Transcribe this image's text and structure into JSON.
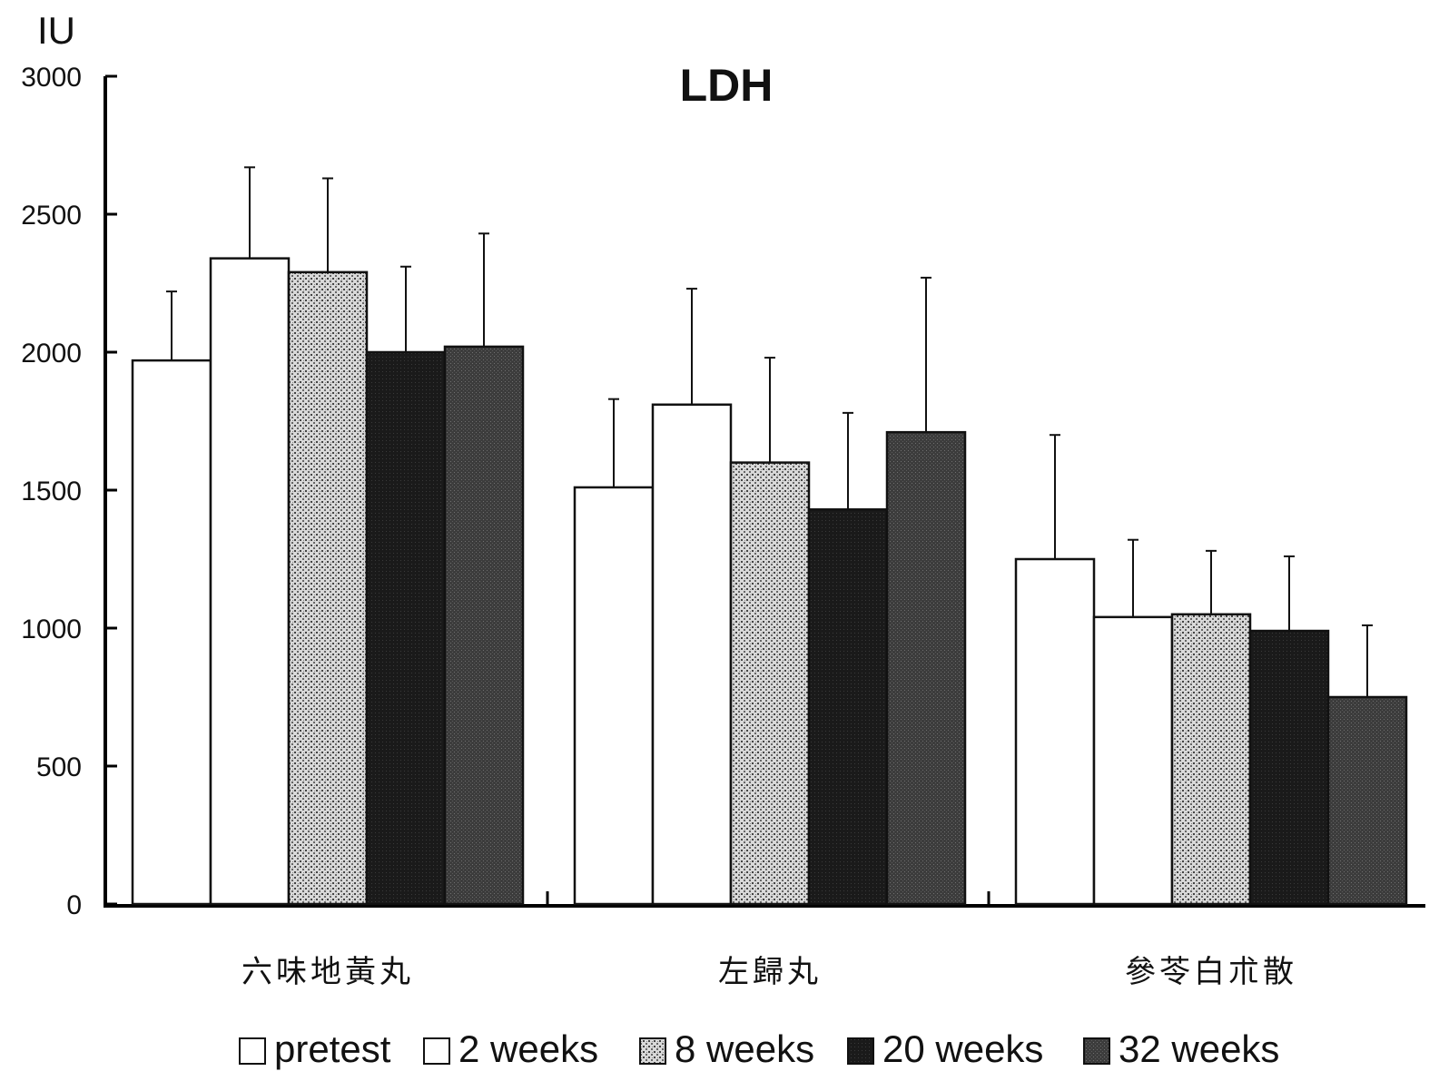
{
  "chart_data": {
    "type": "bar",
    "title": "LDH",
    "ylabel": "IU",
    "xlabel": "",
    "ylim": [
      0,
      3000
    ],
    "yticks": [
      0,
      500,
      1000,
      1500,
      2000,
      2500,
      3000
    ],
    "grid": false,
    "legend_position": "bottom",
    "categories": [
      "六味地黃丸",
      "左歸丸",
      "參苓白朮散"
    ],
    "series": [
      {
        "name": "pretest",
        "values": [
          1970,
          1510,
          1250
        ],
        "errors": [
          250,
          320,
          450
        ],
        "pattern": "white"
      },
      {
        "name": "2 weeks",
        "values": [
          2340,
          1810,
          1040
        ],
        "errors": [
          330,
          420,
          280
        ],
        "pattern": "white"
      },
      {
        "name": "8 weeks",
        "values": [
          2290,
          1600,
          1050
        ],
        "errors": [
          340,
          380,
          230
        ],
        "pattern": "light-stipple"
      },
      {
        "name": "20 weeks",
        "values": [
          2000,
          1430,
          990
        ],
        "errors": [
          310,
          350,
          270
        ],
        "pattern": "dark"
      },
      {
        "name": "32 weeks",
        "values": [
          2020,
          1710,
          750
        ],
        "errors": [
          410,
          560,
          260
        ],
        "pattern": "medium-dark"
      }
    ]
  }
}
